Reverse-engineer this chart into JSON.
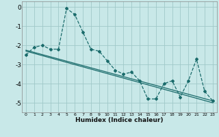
{
  "xlabel": "Humidex (Indice chaleur)",
  "xlim": [
    -0.5,
    23.5
  ],
  "ylim": [
    -5.5,
    0.3
  ],
  "yticks": [
    0,
    -1,
    -2,
    -3,
    -4,
    -5
  ],
  "xticks": [
    0,
    1,
    2,
    3,
    4,
    5,
    6,
    7,
    8,
    9,
    10,
    11,
    12,
    13,
    14,
    15,
    16,
    17,
    18,
    19,
    20,
    21,
    22,
    23
  ],
  "bg_color": "#c8e8e8",
  "grid_color": "#a0c8c8",
  "line_color": "#1a6b6b",
  "main_x": [
    0,
    1,
    2,
    3,
    4,
    5,
    6,
    7,
    8,
    9,
    10,
    11,
    12,
    13,
    14,
    15,
    16,
    17,
    18,
    19,
    20,
    21,
    22,
    23
  ],
  "main_y": [
    -2.5,
    -2.1,
    -2.0,
    -2.2,
    -2.2,
    -0.07,
    -0.38,
    -1.3,
    -2.2,
    -2.3,
    -2.8,
    -3.3,
    -3.5,
    -3.4,
    -3.85,
    -4.8,
    -4.8,
    -4.0,
    -3.85,
    -4.7,
    -3.85,
    -2.72,
    -4.4,
    -4.9
  ],
  "trend1_x": [
    0,
    23
  ],
  "trend1_y": [
    -2.25,
    -4.9
  ],
  "trend2_x": [
    0,
    23
  ],
  "trend2_y": [
    -2.3,
    -5.0
  ]
}
